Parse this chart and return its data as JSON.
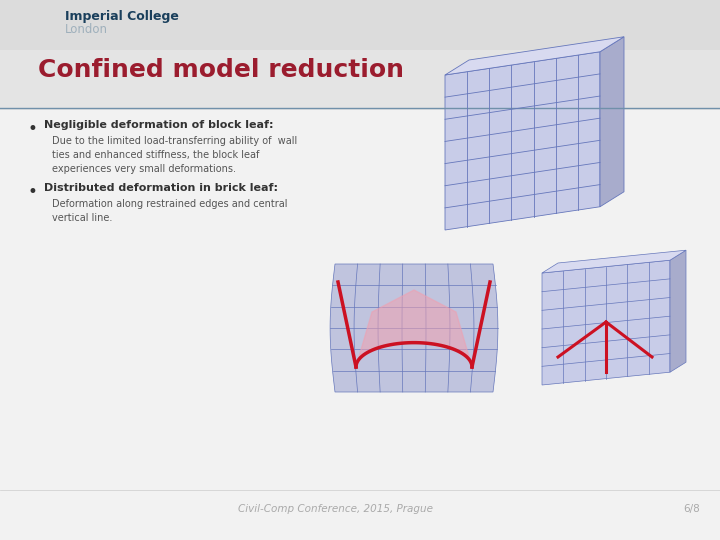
{
  "bg_color": "#e8e8e8",
  "header_bg": "#dcdcdc",
  "content_bg": "#f2f2f2",
  "title_bar_bg": "#e4e4e4",
  "title_text": "Confined model reduction",
  "title_color": "#9b1c2e",
  "imperial_college_text": "Imperial College",
  "london_text": "London",
  "imperial_color": "#1a3f5c",
  "london_color": "#9fb0bc",
  "footer_text": "Civil-Comp Conference, 2015, Prague",
  "footer_page": "6/8",
  "footer_color": "#aaaaaa",
  "bullet1_bold": "Negligible deformation of block leaf:",
  "bullet1_body": "Due to the limited load-transferring ability of  wall\nties and enhanced stiffness, the block leaf\nexperiences very small deformations.",
  "bullet2_bold": "Distributed deformation in brick leaf:",
  "bullet2_body": "Deformation along restrained edges and central\nvertical line.",
  "bullet_color": "#333333",
  "body_color": "#555555",
  "separator_color": "#7090aa",
  "mesh_face": "#c8cce8",
  "mesh_edge": "#6677bb",
  "mesh_side": "#a8accc",
  "mesh_top": "#d8daf0",
  "crack_red": "#cc1122",
  "crack_pink": "#f0a0b0"
}
